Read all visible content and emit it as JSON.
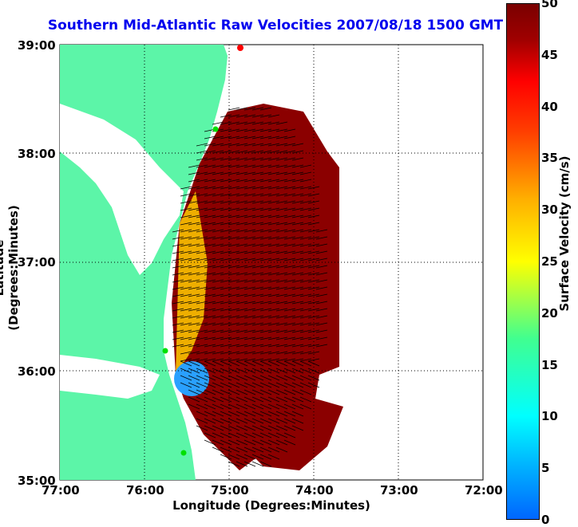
{
  "title": "Southern Mid-Atlantic Raw Velocities 2007/08/18 1500 GMT",
  "xlabel": "Longitude (Degrees:Minutes)",
  "ylabel": "Latitude (Degrees:Minutes)",
  "x_ticks": [
    "77:00",
    "76:00",
    "75:00",
    "74:00",
    "73:00",
    "72:00"
  ],
  "y_ticks": [
    "39:00",
    "38:00",
    "37:00",
    "36:00",
    "35:00"
  ],
  "colorbar": {
    "label": "Surface Velocity (cm/s)",
    "ticks": [
      "50",
      "45",
      "40",
      "35",
      "30",
      "25",
      "20",
      "15",
      "10",
      "5",
      "0"
    ],
    "range": [
      0,
      50
    ]
  },
  "colors": {
    "land": "#5cf5a8",
    "title": "#0000ee",
    "station_green": "#00e000",
    "station_red": "#ff0000"
  }
}
